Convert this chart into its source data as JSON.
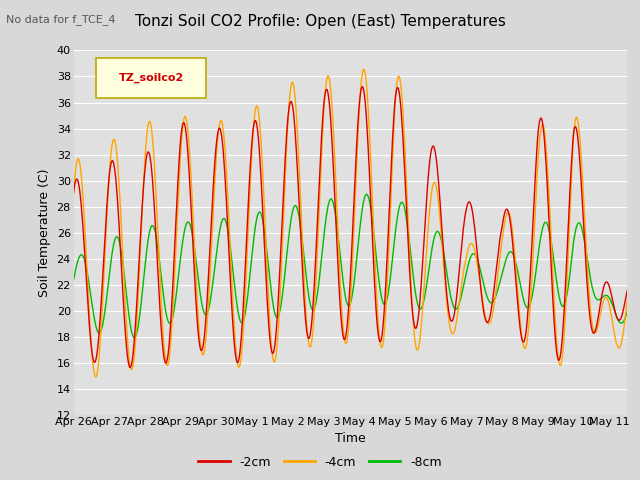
{
  "title": "Tonzi Soil CO2 Profile: Open (East) Temperatures",
  "subtitle": "No data for f_TCE_4",
  "xlabel": "Time",
  "ylabel": "Soil Temperature (C)",
  "ylim": [
    12,
    40
  ],
  "yticks": [
    12,
    14,
    16,
    18,
    20,
    22,
    24,
    26,
    28,
    30,
    32,
    34,
    36,
    38,
    40
  ],
  "date_labels": [
    "Apr 26",
    "Apr 27",
    "Apr 28",
    "Apr 29",
    "Apr 30",
    "May 1",
    "May 2",
    "May 3",
    "May 4",
    "May 5",
    "May 6",
    "May 7",
    "May 8",
    "May 9",
    "May 10",
    "May 11"
  ],
  "legend_label": "TZ_soilco2",
  "series_labels": [
    "-2cm",
    "-4cm",
    "-8cm"
  ],
  "colors": [
    "#dd0000",
    "#ffa500",
    "#00bb00"
  ],
  "fig_bg": "#d8d8d8",
  "plot_bg": "#e0e0e0",
  "n_days": 15.5,
  "base_min_2cm": [
    16.7,
    15.6,
    15.7,
    16.2,
    17.5,
    15.0,
    18.0,
    17.8,
    17.8,
    17.5,
    19.5,
    19.0,
    19.2,
    16.5,
    16.0,
    20.0
  ],
  "base_max_2cm": [
    30.0,
    31.5,
    32.0,
    34.5,
    34.0,
    34.5,
    36.0,
    37.0,
    37.2,
    37.5,
    33.0,
    28.5,
    27.0,
    34.8,
    35.0,
    22.0
  ],
  "base_min_4cm": [
    14.0,
    15.5,
    15.5,
    16.0,
    17.0,
    14.9,
    16.8,
    17.5,
    17.5,
    17.0,
    17.0,
    19.0,
    19.0,
    16.0,
    15.7,
    20.0
  ],
  "base_max_4cm": [
    31.5,
    33.0,
    34.5,
    35.0,
    34.5,
    35.5,
    37.5,
    38.0,
    38.5,
    39.0,
    30.5,
    25.0,
    26.5,
    34.0,
    36.5,
    20.5
  ],
  "base_min_8cm": [
    19.5,
    17.8,
    18.0,
    19.5,
    19.8,
    18.8,
    19.8,
    20.2,
    20.5,
    20.5,
    20.0,
    20.2,
    20.8,
    20.0,
    20.5,
    21.0
  ],
  "base_max_8cm": [
    24.0,
    25.5,
    26.5,
    26.8,
    27.0,
    27.5,
    28.0,
    28.5,
    29.0,
    28.8,
    26.5,
    24.5,
    24.0,
    26.5,
    28.0,
    21.0
  ],
  "title_fontsize": 11,
  "subtitle_fontsize": 8,
  "axis_label_fontsize": 9,
  "tick_fontsize": 8,
  "legend_fontsize": 9
}
